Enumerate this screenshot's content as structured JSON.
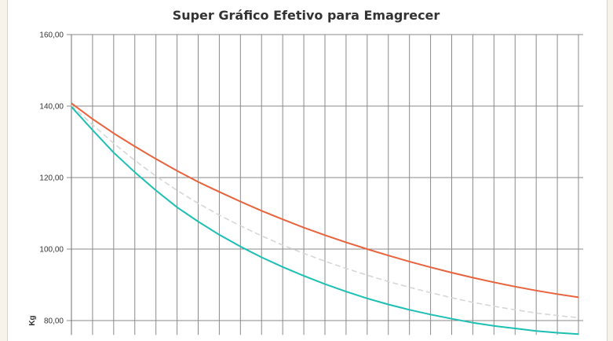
{
  "chart_data": {
    "type": "line",
    "title": "Super Gráfico Efetivo para Emagrecer",
    "xlabel": "",
    "ylabel": "Kg",
    "ylim": [
      76,
      160
    ],
    "yticks": [
      "160,00",
      "140,00",
      "120,00",
      "100,00",
      "80,00"
    ],
    "ytick_values": [
      160,
      140,
      120,
      100,
      80
    ],
    "grid": true,
    "legend": "none",
    "x": [
      0,
      1,
      2,
      3,
      4,
      5,
      6,
      7,
      8,
      9,
      10,
      11,
      12,
      13,
      14,
      15,
      16,
      17,
      18,
      19,
      20,
      21,
      22,
      23,
      24
    ],
    "series": [
      {
        "color": "#e8623c",
        "style": "solid",
        "values": [
          140.8,
          136.4,
          132.4,
          128.7,
          125.2,
          121.9,
          118.8,
          116.0,
          113.3,
          110.7,
          108.3,
          106.0,
          103.9,
          101.9,
          100.0,
          98.2,
          96.5,
          94.9,
          93.4,
          92.0,
          90.7,
          89.5,
          88.4,
          87.4,
          86.5
        ]
      },
      {
        "color": "#1bbfb3",
        "style": "solid",
        "values": [
          139.8,
          133.3,
          127.0,
          121.5,
          116.4,
          111.7,
          107.7,
          104.0,
          100.7,
          97.7,
          95.0,
          92.5,
          90.2,
          88.1,
          86.2,
          84.5,
          83.0,
          81.7,
          80.5,
          79.4,
          78.5,
          77.8,
          77.1,
          76.6,
          76.2
        ]
      },
      {
        "color": "#d6d6d6",
        "style": "dashed",
        "values": [
          140.2,
          134.8,
          129.6,
          124.8,
          120.4,
          116.4,
          112.8,
          109.5,
          106.5,
          103.7,
          101.1,
          98.8,
          96.6,
          94.6,
          92.7,
          90.9,
          89.3,
          87.8,
          86.4,
          85.1,
          84.0,
          83.0,
          82.1,
          81.4,
          80.8
        ]
      }
    ]
  }
}
